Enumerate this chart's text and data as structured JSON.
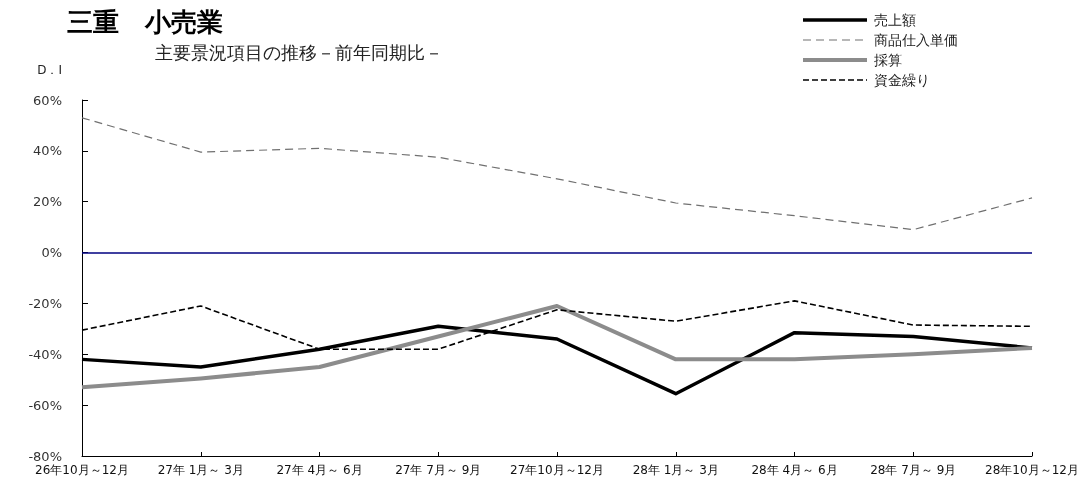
{
  "chart_data": {
    "type": "line",
    "title": "三重　小売業",
    "subtitle": "主要景況項目の推移－前年同期比－",
    "ylabel": "D．I",
    "categories": [
      "26年10月～12月",
      "27年 1月～ 3月",
      "27年 4月～ 6月",
      "27年 7月～ 9月",
      "27年10月～12月",
      "28年 1月～ 3月",
      "28年 4月～ 6月",
      "28年 7月～ 9月",
      "28年10月～12月"
    ],
    "series": [
      {
        "name": "売上額",
        "color": "#000000",
        "line_style": "solid",
        "values": [
          -42,
          -45,
          -38,
          -29,
          -34,
          -55.5,
          -31.5,
          -33,
          -37.5
        ]
      },
      {
        "name": "商品仕入単価",
        "color": "#707070",
        "line_style": "dashed",
        "values": [
          53,
          39.5,
          41,
          37.5,
          29,
          19.5,
          14.5,
          9,
          21.5
        ]
      },
      {
        "name": "採算",
        "color": "#8c8c8c",
        "line_style": "solid",
        "values": [
          -53,
          -49.5,
          -45,
          -33,
          -21,
          -42,
          -42,
          -40,
          -37.5
        ]
      },
      {
        "name": "資金繰り",
        "color": "#000000",
        "line_style": "dashed",
        "values": [
          -30.5,
          -21,
          -38,
          -38,
          -22.5,
          -27,
          -19,
          -28.5,
          -29
        ]
      }
    ],
    "ylim": [
      -80,
      60
    ],
    "yticks": [
      {
        "value": -80,
        "label": "-80%"
      },
      {
        "value": -60,
        "label": "-60%"
      },
      {
        "value": -40,
        "label": "-40%"
      },
      {
        "value": -20,
        "label": "-20%"
      },
      {
        "value": 0,
        "label": "0%"
      },
      {
        "value": 20,
        "label": "20%"
      },
      {
        "value": 40,
        "label": "40%"
      },
      {
        "value": 60,
        "label": "60%"
      }
    ],
    "ref_lines": [
      {
        "axis": "y",
        "value": 0,
        "color": "#000080"
      }
    ],
    "grid": false,
    "legend": "top right",
    "marker": "none"
  }
}
